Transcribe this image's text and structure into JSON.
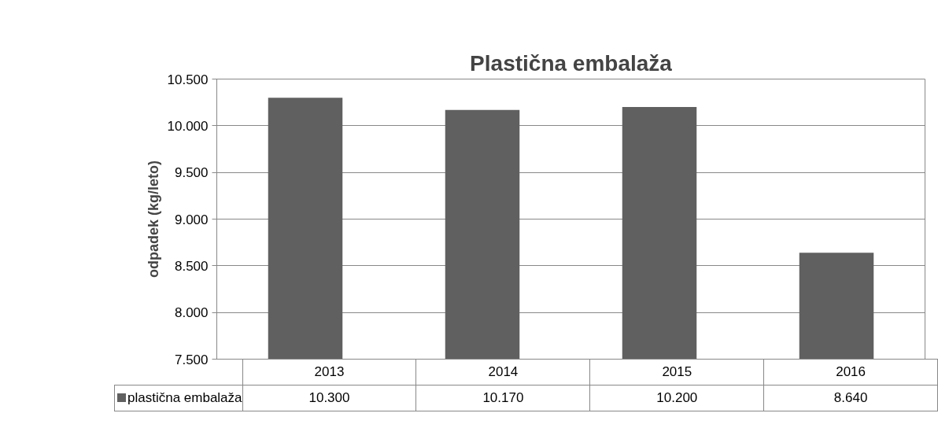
{
  "chart_data": {
    "type": "bar",
    "title": "Plastična embalaža",
    "ylabel": "odpadek (kg/leto)",
    "categories": [
      "2013",
      "2014",
      "2015",
      "2016"
    ],
    "series": [
      {
        "name": "plastična embalaža",
        "color": "#606060",
        "values": [
          10300,
          10170,
          10200,
          8640
        ],
        "value_labels": [
          "10.300",
          "10.170",
          "10.200",
          "8.640"
        ]
      }
    ],
    "ylim": [
      7500,
      10500
    ],
    "yticks": [
      {
        "value": 7500,
        "label": "7.500"
      },
      {
        "value": 8000,
        "label": "8.000"
      },
      {
        "value": 8500,
        "label": "8.500"
      },
      {
        "value": 9000,
        "label": "9.000"
      },
      {
        "value": 9500,
        "label": "9.500"
      },
      {
        "value": 10000,
        "label": "10.000"
      },
      {
        "value": 10500,
        "label": "10.500"
      }
    ],
    "grid": "y",
    "legend": "bottom"
  }
}
